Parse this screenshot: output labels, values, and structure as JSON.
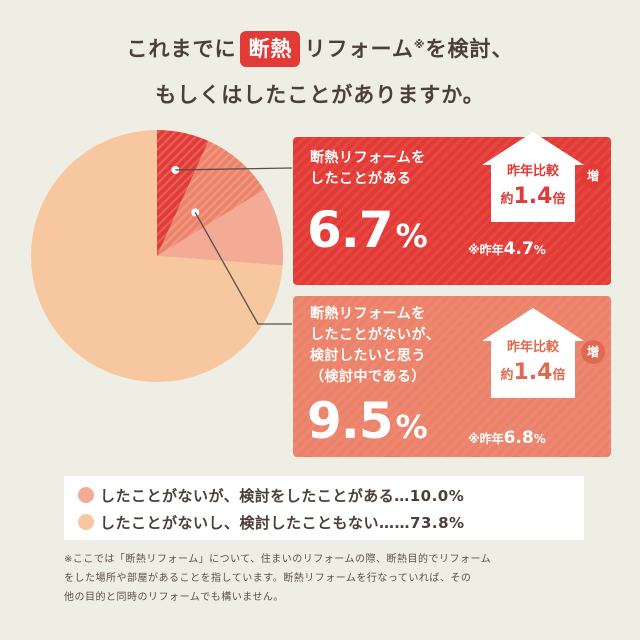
{
  "title": {
    "line1_before": "これまでに",
    "line1_highlight": "断熱",
    "line1_after": "リフォーム",
    "line1_mark": "※",
    "line1_end": "を検討、",
    "line2": "もしくはしたことがありますか。"
  },
  "colors": {
    "did": "#e23a36",
    "considering": "#ec8269",
    "considered": "#f3ab95",
    "not_considered": "#f7c8a0",
    "background": "#eeeee4"
  },
  "chart_data": {
    "type": "pie",
    "start": "12 o'clock, clockwise",
    "slices": [
      {
        "label": "断熱リフォームをしたことがある",
        "value": 6.7,
        "color": "#e23a36"
      },
      {
        "label": "断熱リフォームをしたことがないが、検討したいと思う（検討中である）",
        "value": 9.5,
        "color": "#ec8269"
      },
      {
        "label": "したことがないが、検討をしたことがある",
        "value": 10.0,
        "color": "#f3ab95"
      },
      {
        "label": "したことがないし、検討したこともない",
        "value": 73.8,
        "color": "#f7c8a0"
      }
    ]
  },
  "card1": {
    "label": "断熱リフォームを\nしたことがある",
    "pct": "6.7",
    "unit": "%",
    "house_line1": "昨年比較",
    "house_prefix": "約",
    "house_value": "1.4",
    "house_suffix": "倍",
    "badge": "増",
    "prev_prefix": "※昨年",
    "prev_value": "4.7",
    "prev_unit": "%"
  },
  "card2": {
    "label": "断熱リフォームを\nしたことがないが、\n検討したいと思う\n（検討中である）",
    "pct": "9.5",
    "unit": "%",
    "house_line1": "昨年比較",
    "house_prefix": "約",
    "house_value": "1.4",
    "house_suffix": "倍",
    "badge": "増",
    "prev_prefix": "※昨年",
    "prev_value": "6.8",
    "prev_unit": "%"
  },
  "legend": [
    {
      "text": "したことがないが、検討をしたことがある…10.0%",
      "color": "#f3ab95"
    },
    {
      "text": "したことがないし、検討したこともない……73.8%",
      "color": "#f7c8a0"
    }
  ],
  "note": {
    "line1": "※ここでは「断熱リフォーム」について、住まいのリフォームの際、断熱目的でリフォーム",
    "line2": "をした場所や部屋があることを指しています。断熱リフォームを行なっていれば、その",
    "line3": "他の目的と同時のリフォームでも構いません。"
  }
}
